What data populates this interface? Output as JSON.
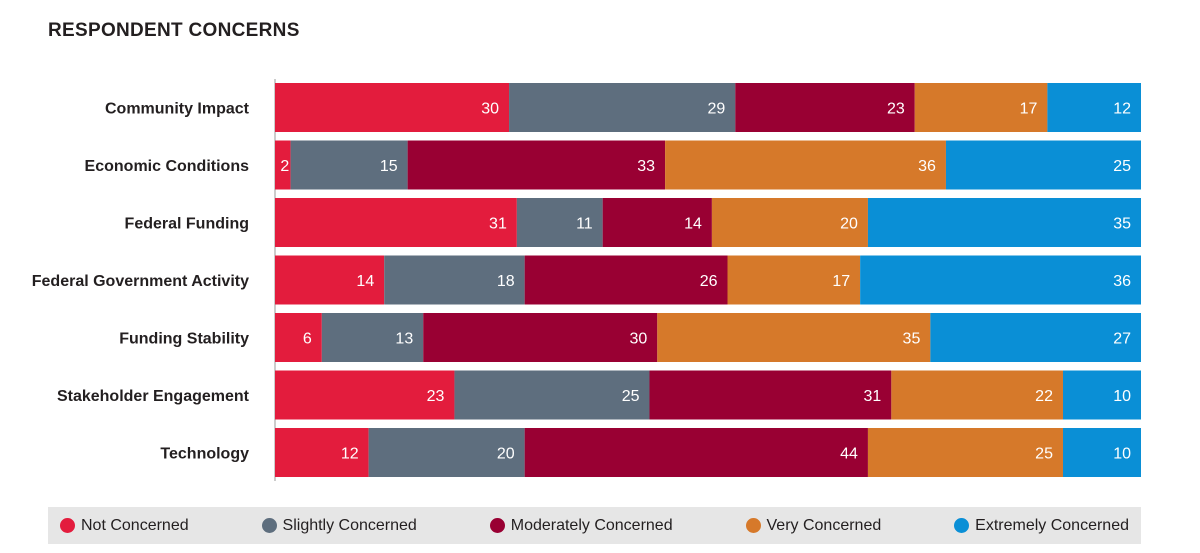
{
  "chart_data": {
    "type": "bar",
    "orientation": "horizontal",
    "stacked": true,
    "title": "RESPONDENT CONCERNS",
    "categories": [
      "Community Impact",
      "Economic Conditions",
      "Federal Funding",
      "Federal Government Activity",
      "Funding Stability",
      "Stakeholder Engagement",
      "Technology"
    ],
    "series": [
      {
        "name": "Not Concerned",
        "color": "#e31c3d",
        "values": [
          30,
          2,
          31,
          14,
          6,
          23,
          12
        ]
      },
      {
        "name": "Slightly Concerned",
        "color": "#5e6e7e",
        "values": [
          29,
          15,
          11,
          18,
          13,
          25,
          20
        ]
      },
      {
        "name": "Moderately Concerned",
        "color": "#990033",
        "values": [
          23,
          33,
          14,
          26,
          30,
          31,
          44
        ]
      },
      {
        "name": "Very Concerned",
        "color": "#d6792a",
        "values": [
          17,
          36,
          20,
          17,
          35,
          22,
          25
        ]
      },
      {
        "name": "Extremely Concerned",
        "color": "#0a8fd6",
        "values": [
          12,
          25,
          35,
          36,
          27,
          10,
          10
        ]
      }
    ],
    "legend_position": "bottom",
    "grid": false
  }
}
